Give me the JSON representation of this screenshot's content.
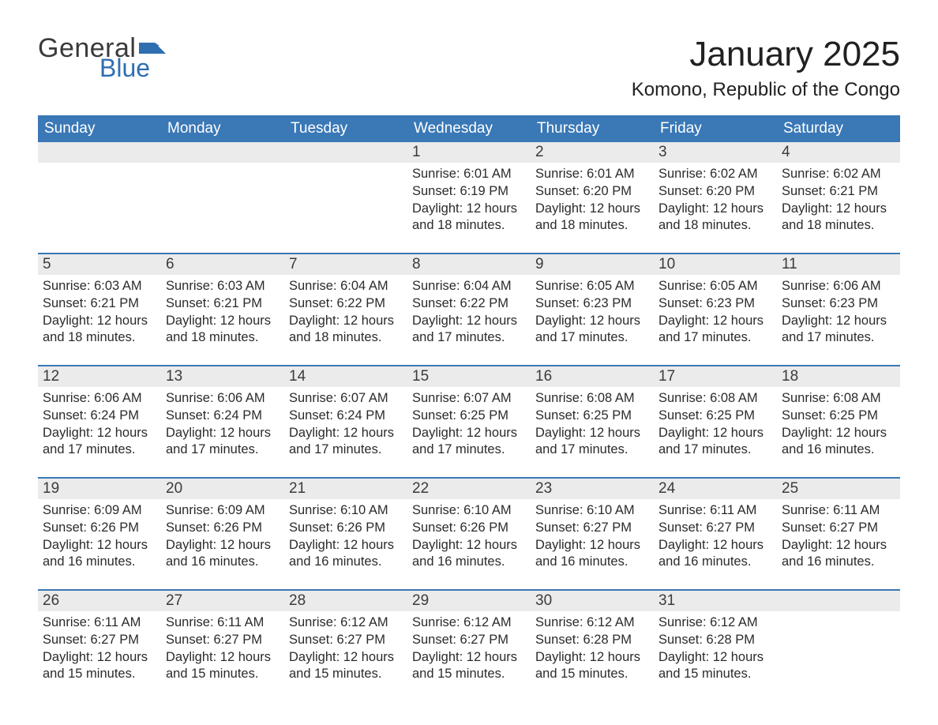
{
  "brand": {
    "general": "General",
    "blue": "Blue",
    "flag_color": "#2f6fb0"
  },
  "title": "January 2025",
  "location": "Komono, Republic of the Congo",
  "colors": {
    "header_bg": "#3a78b6",
    "header_text": "#ffffff",
    "daynum_bg": "#ebebeb",
    "week_divider": "#3a78b6",
    "body_text": "#2b2b2b",
    "page_bg": "#ffffff"
  },
  "typography": {
    "title_fontsize": 44,
    "location_fontsize": 24,
    "dow_fontsize": 19,
    "daynum_fontsize": 19,
    "cell_fontsize": 16.5
  },
  "days_of_week": [
    "Sunday",
    "Monday",
    "Tuesday",
    "Wednesday",
    "Thursday",
    "Friday",
    "Saturday"
  ],
  "weeks": [
    {
      "nums": [
        "",
        "",
        "",
        "1",
        "2",
        "3",
        "4"
      ],
      "cells": [
        null,
        null,
        null,
        {
          "sunrise": "Sunrise: 6:01 AM",
          "sunset": "Sunset: 6:19 PM",
          "d1": "Daylight: 12 hours",
          "d2": "and 18 minutes."
        },
        {
          "sunrise": "Sunrise: 6:01 AM",
          "sunset": "Sunset: 6:20 PM",
          "d1": "Daylight: 12 hours",
          "d2": "and 18 minutes."
        },
        {
          "sunrise": "Sunrise: 6:02 AM",
          "sunset": "Sunset: 6:20 PM",
          "d1": "Daylight: 12 hours",
          "d2": "and 18 minutes."
        },
        {
          "sunrise": "Sunrise: 6:02 AM",
          "sunset": "Sunset: 6:21 PM",
          "d1": "Daylight: 12 hours",
          "d2": "and 18 minutes."
        }
      ]
    },
    {
      "nums": [
        "5",
        "6",
        "7",
        "8",
        "9",
        "10",
        "11"
      ],
      "cells": [
        {
          "sunrise": "Sunrise: 6:03 AM",
          "sunset": "Sunset: 6:21 PM",
          "d1": "Daylight: 12 hours",
          "d2": "and 18 minutes."
        },
        {
          "sunrise": "Sunrise: 6:03 AM",
          "sunset": "Sunset: 6:21 PM",
          "d1": "Daylight: 12 hours",
          "d2": "and 18 minutes."
        },
        {
          "sunrise": "Sunrise: 6:04 AM",
          "sunset": "Sunset: 6:22 PM",
          "d1": "Daylight: 12 hours",
          "d2": "and 18 minutes."
        },
        {
          "sunrise": "Sunrise: 6:04 AM",
          "sunset": "Sunset: 6:22 PM",
          "d1": "Daylight: 12 hours",
          "d2": "and 17 minutes."
        },
        {
          "sunrise": "Sunrise: 6:05 AM",
          "sunset": "Sunset: 6:23 PM",
          "d1": "Daylight: 12 hours",
          "d2": "and 17 minutes."
        },
        {
          "sunrise": "Sunrise: 6:05 AM",
          "sunset": "Sunset: 6:23 PM",
          "d1": "Daylight: 12 hours",
          "d2": "and 17 minutes."
        },
        {
          "sunrise": "Sunrise: 6:06 AM",
          "sunset": "Sunset: 6:23 PM",
          "d1": "Daylight: 12 hours",
          "d2": "and 17 minutes."
        }
      ]
    },
    {
      "nums": [
        "12",
        "13",
        "14",
        "15",
        "16",
        "17",
        "18"
      ],
      "cells": [
        {
          "sunrise": "Sunrise: 6:06 AM",
          "sunset": "Sunset: 6:24 PM",
          "d1": "Daylight: 12 hours",
          "d2": "and 17 minutes."
        },
        {
          "sunrise": "Sunrise: 6:06 AM",
          "sunset": "Sunset: 6:24 PM",
          "d1": "Daylight: 12 hours",
          "d2": "and 17 minutes."
        },
        {
          "sunrise": "Sunrise: 6:07 AM",
          "sunset": "Sunset: 6:24 PM",
          "d1": "Daylight: 12 hours",
          "d2": "and 17 minutes."
        },
        {
          "sunrise": "Sunrise: 6:07 AM",
          "sunset": "Sunset: 6:25 PM",
          "d1": "Daylight: 12 hours",
          "d2": "and 17 minutes."
        },
        {
          "sunrise": "Sunrise: 6:08 AM",
          "sunset": "Sunset: 6:25 PM",
          "d1": "Daylight: 12 hours",
          "d2": "and 17 minutes."
        },
        {
          "sunrise": "Sunrise: 6:08 AM",
          "sunset": "Sunset: 6:25 PM",
          "d1": "Daylight: 12 hours",
          "d2": "and 17 minutes."
        },
        {
          "sunrise": "Sunrise: 6:08 AM",
          "sunset": "Sunset: 6:25 PM",
          "d1": "Daylight: 12 hours",
          "d2": "and 16 minutes."
        }
      ]
    },
    {
      "nums": [
        "19",
        "20",
        "21",
        "22",
        "23",
        "24",
        "25"
      ],
      "cells": [
        {
          "sunrise": "Sunrise: 6:09 AM",
          "sunset": "Sunset: 6:26 PM",
          "d1": "Daylight: 12 hours",
          "d2": "and 16 minutes."
        },
        {
          "sunrise": "Sunrise: 6:09 AM",
          "sunset": "Sunset: 6:26 PM",
          "d1": "Daylight: 12 hours",
          "d2": "and 16 minutes."
        },
        {
          "sunrise": "Sunrise: 6:10 AM",
          "sunset": "Sunset: 6:26 PM",
          "d1": "Daylight: 12 hours",
          "d2": "and 16 minutes."
        },
        {
          "sunrise": "Sunrise: 6:10 AM",
          "sunset": "Sunset: 6:26 PM",
          "d1": "Daylight: 12 hours",
          "d2": "and 16 minutes."
        },
        {
          "sunrise": "Sunrise: 6:10 AM",
          "sunset": "Sunset: 6:27 PM",
          "d1": "Daylight: 12 hours",
          "d2": "and 16 minutes."
        },
        {
          "sunrise": "Sunrise: 6:11 AM",
          "sunset": "Sunset: 6:27 PM",
          "d1": "Daylight: 12 hours",
          "d2": "and 16 minutes."
        },
        {
          "sunrise": "Sunrise: 6:11 AM",
          "sunset": "Sunset: 6:27 PM",
          "d1": "Daylight: 12 hours",
          "d2": "and 16 minutes."
        }
      ]
    },
    {
      "nums": [
        "26",
        "27",
        "28",
        "29",
        "30",
        "31",
        ""
      ],
      "cells": [
        {
          "sunrise": "Sunrise: 6:11 AM",
          "sunset": "Sunset: 6:27 PM",
          "d1": "Daylight: 12 hours",
          "d2": "and 15 minutes."
        },
        {
          "sunrise": "Sunrise: 6:11 AM",
          "sunset": "Sunset: 6:27 PM",
          "d1": "Daylight: 12 hours",
          "d2": "and 15 minutes."
        },
        {
          "sunrise": "Sunrise: 6:12 AM",
          "sunset": "Sunset: 6:27 PM",
          "d1": "Daylight: 12 hours",
          "d2": "and 15 minutes."
        },
        {
          "sunrise": "Sunrise: 6:12 AM",
          "sunset": "Sunset: 6:27 PM",
          "d1": "Daylight: 12 hours",
          "d2": "and 15 minutes."
        },
        {
          "sunrise": "Sunrise: 6:12 AM",
          "sunset": "Sunset: 6:28 PM",
          "d1": "Daylight: 12 hours",
          "d2": "and 15 minutes."
        },
        {
          "sunrise": "Sunrise: 6:12 AM",
          "sunset": "Sunset: 6:28 PM",
          "d1": "Daylight: 12 hours",
          "d2": "and 15 minutes."
        },
        null
      ]
    }
  ]
}
